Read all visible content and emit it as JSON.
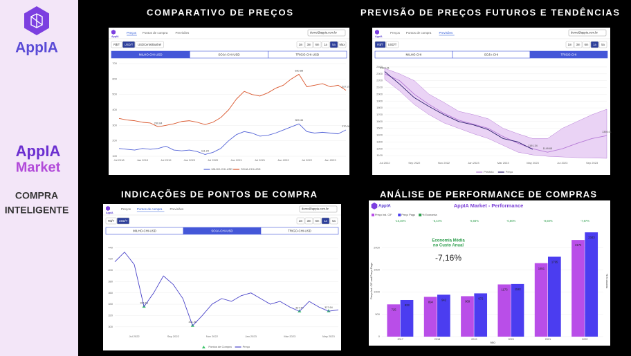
{
  "sidebar": {
    "logo": "AppIA",
    "market_logo": [
      "AppIA",
      "Market"
    ],
    "tagline": [
      "COMPRA",
      "INTELIGENTE"
    ]
  },
  "panels": [
    {
      "title": "COMPARATIVO DE PREÇOS",
      "app": {
        "logo": "AppIA",
        "nav_links": [
          "Preços",
          "Pontos de compra",
          "Previsões"
        ],
        "active_link": 0,
        "email": "demo@appia.com.br",
        "units": [
          "R$/T",
          "USD/T",
          "USDCents/Bushel"
        ],
        "active_unit": 1,
        "ranges": [
          "1m",
          "3m",
          "6m",
          "1a",
          "5a",
          "Max"
        ],
        "active_range": 4,
        "tabs": [
          "MILHO-CHI-USD",
          "SOJA-CHI-USD",
          "TRIGO-CHI-USD"
        ],
        "active_tab": 0
      },
      "chart": {
        "type": "line",
        "categories": [
          "Jul 2018",
          null,
          null,
          "Jan 2019",
          null,
          null,
          "Jul 2019",
          null,
          null,
          "Jan 2020",
          null,
          null,
          "Jul 2020",
          null,
          null,
          "Jan 2021",
          null,
          null,
          "Jul 2021",
          null,
          null,
          "Jan 2022",
          null,
          null,
          "Jul 2022",
          null,
          null,
          "Jan 2023",
          null,
          null
        ],
        "ylim": [
          100,
          700
        ],
        "yticks": [
          100,
          200,
          300,
          400,
          500,
          600,
          700
        ],
        "grid": true,
        "series": [
          {
            "name": "MILHO-CHI-USD",
            "color": "#5060d6",
            "values": [
              150,
              145,
              140,
              150,
              145,
              150,
              165,
              140,
              135,
              140,
              130,
              111.24,
              125,
              150,
              200,
              240,
              260,
              250,
              230,
              235,
              250,
              270,
              290,
              309.46,
              260,
              250,
              255,
              250,
              245,
              270.06
            ],
            "value_labels": [
              null,
              null,
              null,
              null,
              null,
              null,
              null,
              null,
              null,
              null,
              null,
              "111.24",
              null,
              null,
              null,
              null,
              null,
              null,
              null,
              null,
              null,
              null,
              null,
              "309.46",
              null,
              null,
              null,
              null,
              null,
              "270.06"
            ]
          },
          {
            "name": "SOJA-CHI-USD",
            "color": "#d9542a",
            "values": [
              345,
              335,
              330,
              320,
              315,
              290.64,
              300,
              310,
              325,
              330,
              320,
              305,
              320,
              350,
              400,
              470,
              520,
              500,
              490,
              510,
              540,
              560,
              600,
              630.88,
              550,
              560,
              570,
              550,
              560,
              527.27
            ],
            "value_labels": [
              null,
              null,
              null,
              null,
              null,
              "290.64",
              null,
              null,
              null,
              null,
              null,
              null,
              null,
              null,
              null,
              null,
              null,
              null,
              null,
              null,
              null,
              null,
              null,
              "630.88",
              null,
              null,
              null,
              null,
              null,
              "527.27"
            ]
          }
        ]
      }
    },
    {
      "title": "PREVISÃO DE PREÇOS FUTUROS E TENDÊNCIAS",
      "app": {
        "logo": "AppIA",
        "nav_links": [
          "Preços",
          "Pontos de compra",
          "Previsões"
        ],
        "active_link": 2,
        "email": "demo@appia.com.br",
        "units": [
          "R$/T",
          "USD/T"
        ],
        "active_unit": 0,
        "ranges": [
          "1m",
          "3m",
          "6m",
          "1a",
          "5a"
        ],
        "active_range": 3,
        "tabs": [
          "MILHO-CHI",
          "SOJA-CHI",
          "TRIGO-CHI"
        ],
        "active_tab": 2
      },
      "chart": {
        "type": "line",
        "categories": [
          "Jul 2022",
          null,
          "Sep 2022",
          null,
          "Nov 2022",
          null,
          "Jan 2023",
          null,
          "Mar 2023",
          null,
          "May 2023",
          null,
          "Jul 2023",
          null,
          "Sep 2023",
          null
        ],
        "ylim": [
          1050,
          2450
        ],
        "yticks": [
          1100,
          1200,
          1300,
          1400,
          1500,
          1600,
          1700,
          1800,
          1900,
          2000,
          2100,
          2200,
          2300,
          2400
        ],
        "grid": true,
        "series": [
          {
            "name": "Previsto",
            "color": "#b57ad6",
            "band_color": "#ead3f5",
            "values": [
              2300,
              2200,
              2000,
              1850,
              1720,
              1620,
              1560,
              1500,
              1380,
              1280,
              1200,
              1149.65,
              1200,
              1280,
              1350,
              1393.01
            ],
            "upper": [
              2380,
              2300,
              2200,
              2000,
              1880,
              1750,
              1700,
              1640,
              1500,
              1420,
              1350,
              1350,
              1500,
              1600,
              1700,
              1780
            ],
            "lower": [
              2220,
              2050,
              1850,
              1700,
              1580,
              1500,
              1420,
              1350,
              1250,
              1150,
              1110,
              1090,
              1080,
              1070,
              1065,
              1060
            ],
            "value_labels": [
              null,
              null,
              null,
              null,
              null,
              null,
              null,
              null,
              null,
              null,
              null,
              "1149.65",
              null,
              null,
              null,
              "1393.01"
            ]
          },
          {
            "name": "Preço",
            "color": "#2b1d6e",
            "values": [
              2333.31,
              2150,
              1950,
              1820,
              1700,
              1600,
              1550,
              1480,
              1350,
              1300,
              1191.34,
              null,
              null,
              null,
              null,
              null
            ],
            "value_labels": [
              "2333.31",
              null,
              null,
              null,
              null,
              null,
              null,
              null,
              null,
              null,
              "1191.34",
              null,
              null,
              null,
              null,
              null
            ]
          }
        ]
      }
    },
    {
      "title": "INDICAÇÕES DE PONTOS DE COMPRA",
      "app": {
        "logo": "AppIA",
        "nav_links": [
          "Preços",
          "Pontos de compra",
          "Previsões"
        ],
        "active_link": 1,
        "email": "demo@appia.com.br",
        "units": [
          "R$/T",
          "USD/T"
        ],
        "active_unit": 1,
        "ranges": [
          "1m",
          "3m",
          "6m",
          "1a",
          "5a"
        ],
        "active_range": 3,
        "tabs": [
          "MILHO-CHI-USD",
          "SOJA-CHI-USD",
          "TRIGO-CHI-USD"
        ],
        "active_tab": 1
      },
      "chart": {
        "type": "line",
        "categories": [
          null,
          null,
          "Jul 2022",
          null,
          null,
          null,
          "Sep 2022",
          null,
          null,
          null,
          "Nov 2022",
          null,
          null,
          null,
          "Jan 2023",
          null,
          null,
          null,
          "Mar 2023",
          null,
          null,
          null,
          "May 2023",
          null
        ],
        "ylim": [
          290,
          450
        ],
        "yticks": [
          300,
          320,
          340,
          360,
          380,
          400,
          420,
          440
        ],
        "grid": true,
        "series": [
          {
            "name": "Pontos de Compra",
            "color": "#3cc46a",
            "style": "marker",
            "values": [
              null,
              null,
              null,
              335.63,
              null,
              null,
              null,
              null,
              301.96,
              null,
              null,
              null,
              null,
              null,
              null,
              null,
              null,
              null,
              null,
              327.44,
              null,
              null,
              327.64,
              null
            ],
            "value_labels": [
              null,
              null,
              null,
              "335.63",
              null,
              null,
              null,
              null,
              "301.96",
              null,
              null,
              null,
              null,
              null,
              null,
              null,
              null,
              null,
              null,
              "327.44",
              null,
              null,
              "327.64",
              null
            ]
          },
          {
            "name": "Preço",
            "color": "#4a44c9",
            "values": [
              415,
              432,
              410,
              335.63,
              360,
              390,
              375,
              350,
              301.96,
              320,
              340,
              350,
              345,
              355,
              360,
              350,
              340,
              345,
              335,
              327.44,
              345,
              335,
              327.64,
              330
            ]
          }
        ]
      }
    },
    {
      "title": "ANÁLISE DE PERFORMANCE DE COMPRAS",
      "app": {
        "logo": "AppIA",
        "heading": "AppIA Market - Performance"
      },
      "chart": {
        "type": "bar",
        "categories": [
          "2017",
          "2018",
          "2019",
          "2020",
          "2021",
          "2022"
        ],
        "ylim": [
          0,
          2500
        ],
        "yticks": [
          0,
          500,
          1000,
          1500,
          2000
        ],
        "grid": true,
        "x_label": "Ano",
        "y_label": "Preço Ind. CIF and Preço Pago",
        "y2_label": "% Economia",
        "annotation": {
          "lines": [
            "Economia Média",
            "no Custo Anual"
          ],
          "value": "-7,16%"
        },
        "series": [
          {
            "name": "Preço Ind. CIF",
            "color": "#b94ee8",
            "values": [
              725,
              894,
              909,
              1173,
              1651,
              2172
            ]
          },
          {
            "name": "Preço Pago",
            "color": "#4b3df0",
            "values": [
              823,
              942,
              972,
              1182,
              1795,
              2343
            ]
          },
          {
            "name": "% Economia",
            "color": "#2e9e4d",
            "style": "label",
            "axis": "y2",
            "values": [
              -15.46,
              -5.44,
              -6.93,
              -0.8,
              -8.5,
              -7.87
            ],
            "value_labels": [
              "-15,46%",
              "-5,44%",
              "-6,93%",
              "-0,80%",
              "-8,50%",
              "-7,87%"
            ]
          }
        ]
      }
    }
  ]
}
